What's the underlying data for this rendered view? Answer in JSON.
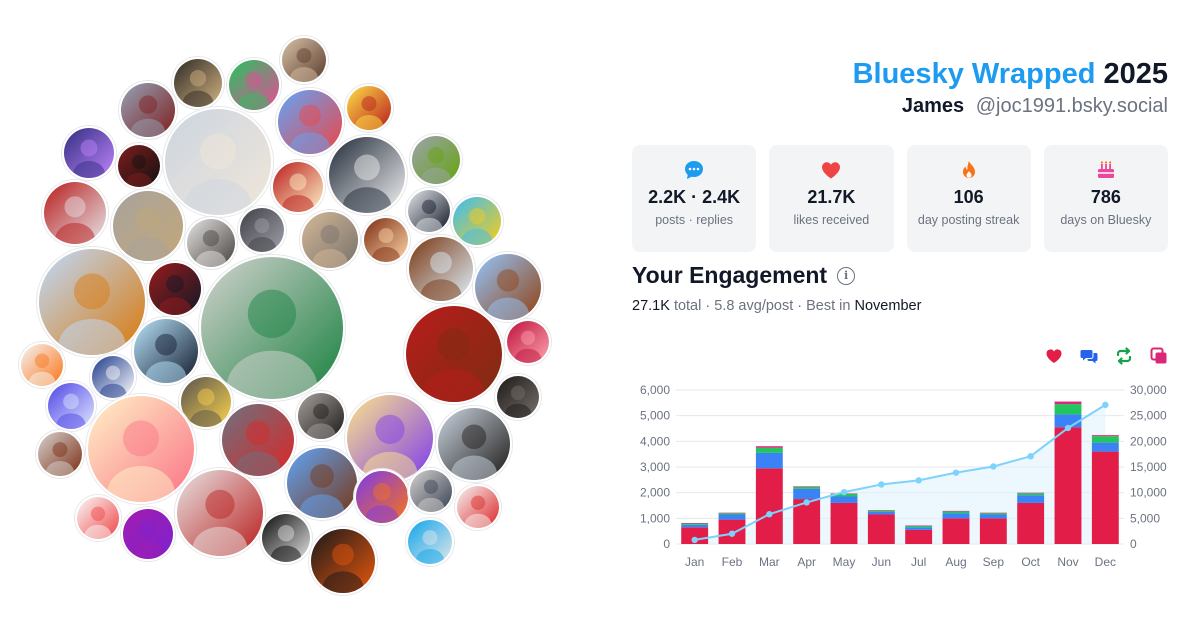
{
  "header": {
    "brand": "Bluesky Wrapped",
    "year": "2025",
    "display_name": "James",
    "handle": "@joc1991.bsky.social"
  },
  "stats": [
    {
      "icon": "speech-bubble-icon",
      "value": "2.2K · 2.4K",
      "label": "posts · replies",
      "color": "#1d9bf0"
    },
    {
      "icon": "heart-icon",
      "value": "21.7K",
      "label": "likes received",
      "color": "#ef4444"
    },
    {
      "icon": "flame-icon",
      "value": "106",
      "label": "day posting streak",
      "color": "#f97316"
    },
    {
      "icon": "cake-icon",
      "value": "786",
      "label": "days on Bluesky",
      "color": "#ec4899"
    }
  ],
  "engagement": {
    "title": "Your Engagement",
    "total": "27.1K",
    "total_label": "total",
    "avg": "5.8 avg/post",
    "best_label": "Best in",
    "best_month": "November"
  },
  "legend": [
    {
      "icon": "heart-icon",
      "color": "#e11d48"
    },
    {
      "icon": "replies-icon",
      "color": "#2563eb"
    },
    {
      "icon": "repost-icon",
      "color": "#16a34a"
    },
    {
      "icon": "quote-icon",
      "color": "#db2777"
    }
  ],
  "chart_data": {
    "type": "bar",
    "categories": [
      "Jan",
      "Feb",
      "Mar",
      "Apr",
      "May",
      "Jun",
      "Jul",
      "Aug",
      "Sep",
      "Oct",
      "Nov",
      "Dec"
    ],
    "series": [
      {
        "values": [
          650,
          950,
          2950,
          1750,
          1600,
          1150,
          550,
          1000,
          1000,
          1600,
          4550,
          3600
        ],
        "color": "#e11d48"
      },
      {
        "values": [
          100,
          200,
          600,
          400,
          250,
          100,
          100,
          200,
          150,
          300,
          500,
          350
        ],
        "color": "#3b82f6"
      },
      {
        "values": [
          50,
          50,
          200,
          80,
          100,
          50,
          50,
          70,
          50,
          80,
          400,
          250
        ],
        "color": "#22c55e"
      },
      {
        "values": [
          20,
          20,
          60,
          20,
          20,
          20,
          20,
          20,
          20,
          20,
          100,
          40
        ],
        "color": "#db2777"
      }
    ],
    "cumulative": {
      "values": [
        800,
        2000,
        5800,
        8100,
        10100,
        11600,
        12400,
        13900,
        15100,
        17100,
        22600,
        27100
      ],
      "color": "#7dd3fc"
    },
    "ylim": [
      0,
      6000
    ],
    "y2lim": [
      0,
      30000
    ],
    "y_ticks": [
      "0",
      "1,000",
      "2,000",
      "3,000",
      "4,000",
      "5,000",
      "6,000"
    ],
    "y2_ticks": [
      "0",
      "5,000",
      "10,000",
      "15,000",
      "20,000",
      "25,000",
      "30,000"
    ],
    "grid": true
  }
}
